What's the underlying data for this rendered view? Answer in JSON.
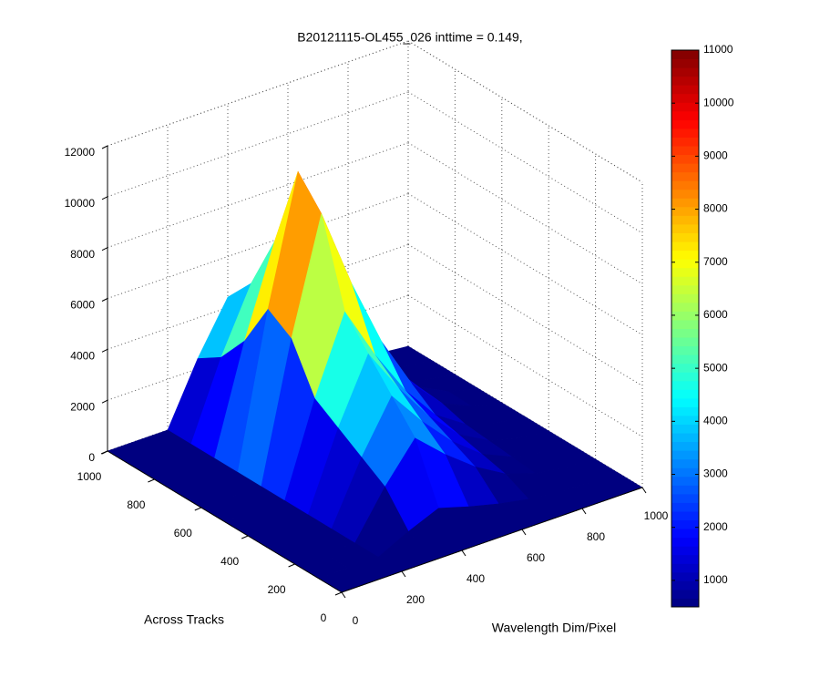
{
  "chart_data": {
    "type": "surface",
    "title": "B20121115-OL455_026 inttime = 0.149,",
    "xlabel": "Wavelength Dim/Pixel",
    "ylabel": "Across Tracks",
    "colormap": "jet",
    "x": [
      0,
      100,
      200,
      300,
      400,
      500,
      600,
      700,
      800,
      900,
      1000
    ],
    "y": [
      0,
      100,
      200,
      300,
      400,
      500,
      600,
      700,
      800,
      900,
      1000
    ],
    "z": [
      [
        0,
        0,
        0,
        0,
        0,
        0,
        0,
        0,
        0,
        0,
        0
      ],
      [
        0,
        0,
        0,
        600,
        1100,
        750,
        450,
        220,
        90,
        30,
        0
      ],
      [
        0,
        0,
        0,
        1800,
        3300,
        2250,
        1350,
        660,
        270,
        90,
        0
      ],
      [
        0,
        0,
        0,
        2400,
        4400,
        3000,
        1800,
        880,
        360,
        120,
        0
      ],
      [
        0,
        0,
        0,
        3000,
        5500,
        3750,
        2250,
        1100,
        450,
        150,
        0
      ],
      [
        0,
        0,
        0,
        3600,
        6600,
        4500,
        2700,
        1320,
        540,
        180,
        0
      ],
      [
        0,
        0,
        0,
        5400,
        9900,
        6750,
        4050,
        1980,
        810,
        270,
        0
      ],
      [
        0,
        0,
        0,
        6000,
        11000,
        7500,
        4500,
        2200,
        900,
        300,
        0
      ],
      [
        0,
        0,
        0,
        4200,
        7700,
        5250,
        3150,
        1540,
        630,
        210,
        0
      ],
      [
        0,
        0,
        0,
        3000,
        5500,
        3750,
        2250,
        1100,
        450,
        150,
        0
      ],
      [
        0,
        0,
        0,
        2400,
        4400,
        3000,
        1800,
        880,
        360,
        120,
        0
      ]
    ],
    "xlim": [
      0,
      1000
    ],
    "ylim": [
      0,
      1000
    ],
    "zlim": [
      0,
      12000
    ],
    "xticks": [
      0,
      200,
      400,
      600,
      800,
      1000
    ],
    "yticks": [
      0,
      200,
      400,
      600,
      800,
      1000
    ],
    "zticks": [
      0,
      2000,
      4000,
      6000,
      8000,
      10000,
      12000
    ],
    "clim": [
      500,
      11000
    ],
    "cticks": [
      1000,
      2000,
      3000,
      4000,
      5000,
      6000,
      7000,
      8000,
      9000,
      10000,
      11000
    ],
    "grid": true
  }
}
